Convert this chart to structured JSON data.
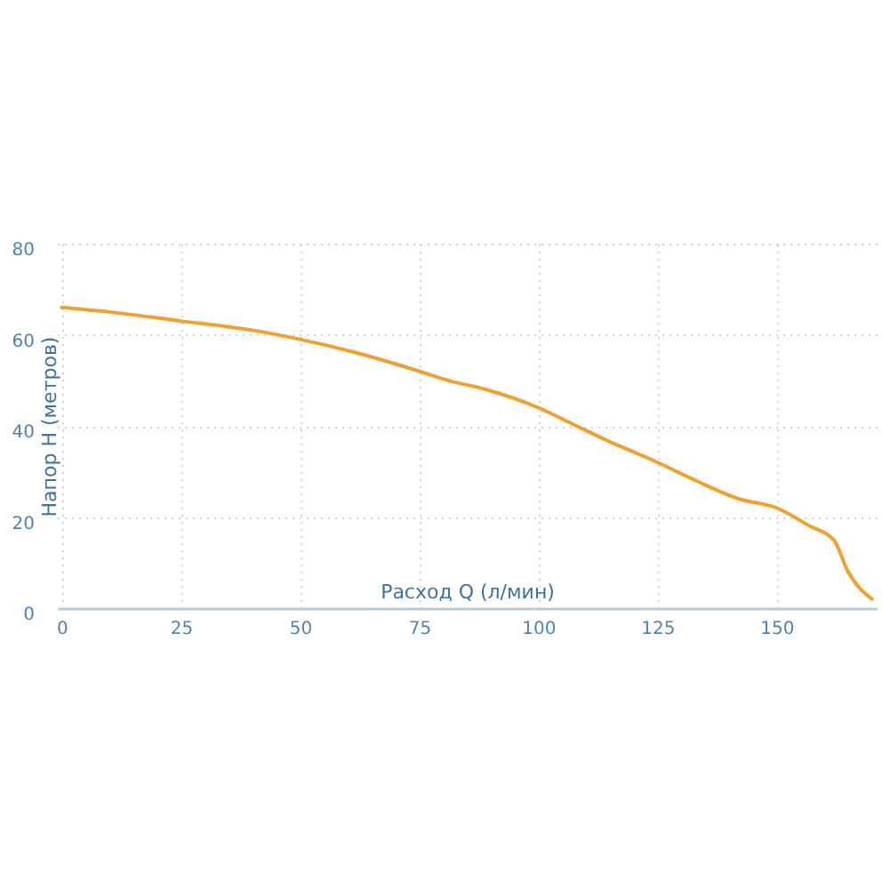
{
  "chart_data": {
    "type": "line",
    "xlabel": "Расход Q (л/мин)",
    "ylabel": "Напор Н (метров)",
    "x": [
      0,
      10,
      25,
      40,
      50,
      62,
      75,
      81,
      89,
      100,
      108,
      114,
      125,
      133,
      142,
      150,
      157,
      162,
      165,
      170
    ],
    "series": [
      {
        "color": "#f0a030",
        "values": [
          66,
          65,
          63,
          61,
          59,
          56,
          52,
          50,
          48,
          44,
          40,
          37,
          32,
          28,
          24,
          22,
          18,
          15,
          8,
          2
        ]
      }
    ],
    "xlim": [
      -1,
      171
    ],
    "ylim": [
      0,
      80
    ],
    "xticks": [
      0,
      25,
      50,
      75,
      100,
      125,
      150
    ],
    "yticks": [
      0,
      20,
      40,
      60,
      80
    ],
    "grid": true,
    "line_style": "solid"
  }
}
